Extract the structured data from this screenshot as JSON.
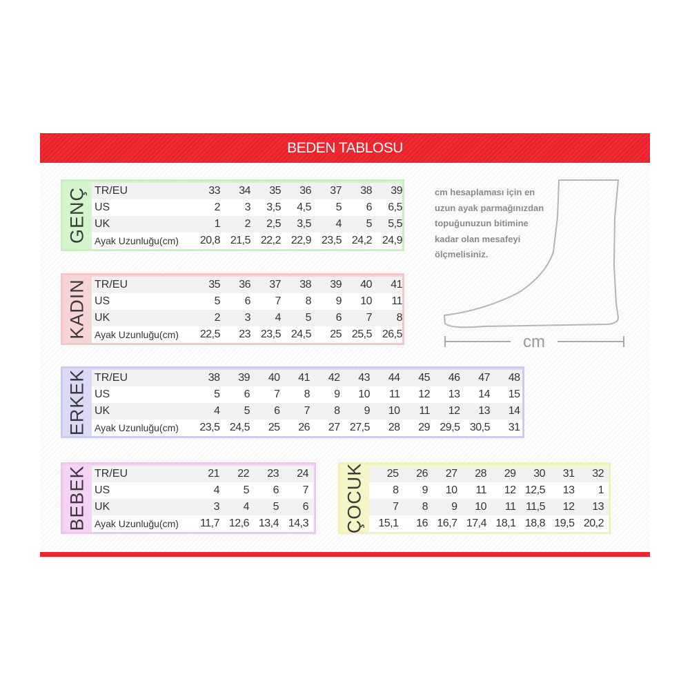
{
  "title": "BEDEN TABLOSU",
  "colors": {
    "header": "#ec2530",
    "genc": "#d6f5cf",
    "kadin": "#f7d5d7",
    "erkek": "#dadaf7",
    "bebek": "#f5d3f5",
    "cocuk": "#f5f5c6"
  },
  "tables": [
    {
      "id": "genc",
      "label": "GENÇ",
      "rows": [
        {
          "label": "TR/EU",
          "values": [
            "33",
            "34",
            "35",
            "36",
            "37",
            "38",
            "39"
          ]
        },
        {
          "label": "US",
          "values": [
            "2",
            "3",
            "3,5",
            "4,5",
            "5",
            "6",
            "6,5"
          ]
        },
        {
          "label": "UK",
          "values": [
            "1",
            "2",
            "2,5",
            "3,5",
            "4",
            "5",
            "5,5"
          ]
        },
        {
          "label": "Ayak Uzunluğu(cm)",
          "values": [
            "20,8",
            "21,5",
            "22,2",
            "22,9",
            "23,5",
            "24,2",
            "24,9"
          ]
        }
      ]
    },
    {
      "id": "kadin",
      "label": "KADIN",
      "rows": [
        {
          "label": "TR/EU",
          "values": [
            "35",
            "36",
            "37",
            "38",
            "39",
            "40",
            "41"
          ]
        },
        {
          "label": "US",
          "values": [
            "5",
            "6",
            "7",
            "8",
            "9",
            "10",
            "11"
          ]
        },
        {
          "label": "UK",
          "values": [
            "2",
            "3",
            "4",
            "5",
            "6",
            "7",
            "8"
          ]
        },
        {
          "label": "Ayak Uzunluğu(cm)",
          "values": [
            "22,5",
            "23",
            "23,5",
            "24,5",
            "25",
            "25,5",
            "26,5"
          ]
        }
      ]
    },
    {
      "id": "erkek",
      "label": "ERKEK",
      "rows": [
        {
          "label": "TR/EU",
          "values": [
            "38",
            "39",
            "40",
            "41",
            "42",
            "43",
            "44",
            "45",
            "46",
            "47",
            "48"
          ]
        },
        {
          "label": "US",
          "values": [
            "5",
            "6",
            "7",
            "8",
            "9",
            "10",
            "11",
            "12",
            "13",
            "14",
            "15"
          ]
        },
        {
          "label": "UK",
          "values": [
            "4",
            "5",
            "6",
            "7",
            "8",
            "9",
            "10",
            "11",
            "12",
            "13",
            "14"
          ]
        },
        {
          "label": "Ayak Uzunluğu(cm)",
          "values": [
            "23,5",
            "24,5",
            "25",
            "26",
            "27",
            "27,5",
            "28",
            "29",
            "29,5",
            "30,5",
            "31"
          ]
        }
      ]
    },
    {
      "id": "bebek",
      "label": "BEBEK",
      "rows": [
        {
          "label": "TR/EU",
          "values": [
            "21",
            "22",
            "23",
            "24"
          ]
        },
        {
          "label": "US",
          "values": [
            "4",
            "5",
            "6",
            "7"
          ]
        },
        {
          "label": "UK",
          "values": [
            "3",
            "4",
            "5",
            "6"
          ]
        },
        {
          "label": "Ayak Uzunluğu(cm)",
          "values": [
            "11,7",
            "12,6",
            "13,4",
            "14,3"
          ]
        }
      ]
    },
    {
      "id": "cocuk",
      "label": "ÇOCUK",
      "rows": [
        {
          "label": "",
          "values": [
            "25",
            "26",
            "27",
            "28",
            "29",
            "30",
            "31",
            "32"
          ]
        },
        {
          "label": "",
          "values": [
            "8",
            "9",
            "10",
            "11",
            "12",
            "12,5",
            "13",
            "1"
          ]
        },
        {
          "label": "",
          "values": [
            "7",
            "8",
            "9",
            "10",
            "11",
            "11,5",
            "12",
            "13"
          ]
        },
        {
          "label": "",
          "values": [
            "15,1",
            "16",
            "16,7",
            "17,4",
            "18,1",
            "18,8",
            "19,5",
            "20,2"
          ]
        }
      ]
    }
  ],
  "note": [
    "cm hesaplaması için en",
    "uzun ayak parmağınızdan",
    "topuğunuzun bitimine",
    "kadar olan mesafeyi",
    "ölçmelisiniz."
  ],
  "measure_label": "cm"
}
